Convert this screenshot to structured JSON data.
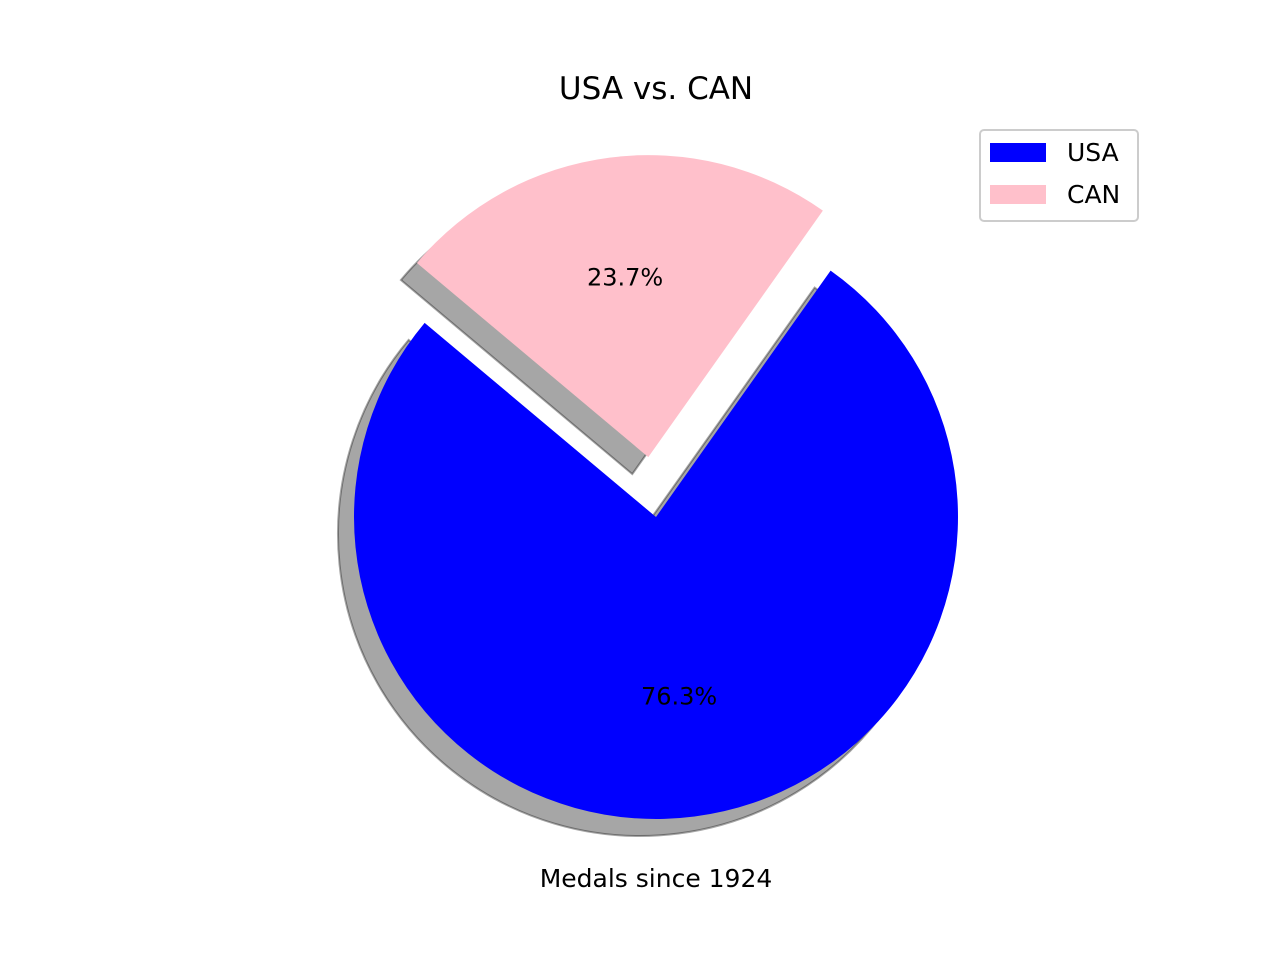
{
  "chart_data": {
    "type": "pie",
    "title": "USA vs. CAN",
    "xlabel": "Medals since 1924",
    "labels": [
      "USA",
      "CAN"
    ],
    "values": [
      76.3,
      23.7
    ],
    "percent_labels": [
      "76.3%",
      "23.7%"
    ],
    "colors": [
      "#0000ff",
      "#ffc0cb"
    ],
    "exploded": [
      "",
      "CAN"
    ],
    "shadow": true,
    "legend": {
      "position": "top-right",
      "entries": [
        "USA",
        "CAN"
      ]
    }
  }
}
